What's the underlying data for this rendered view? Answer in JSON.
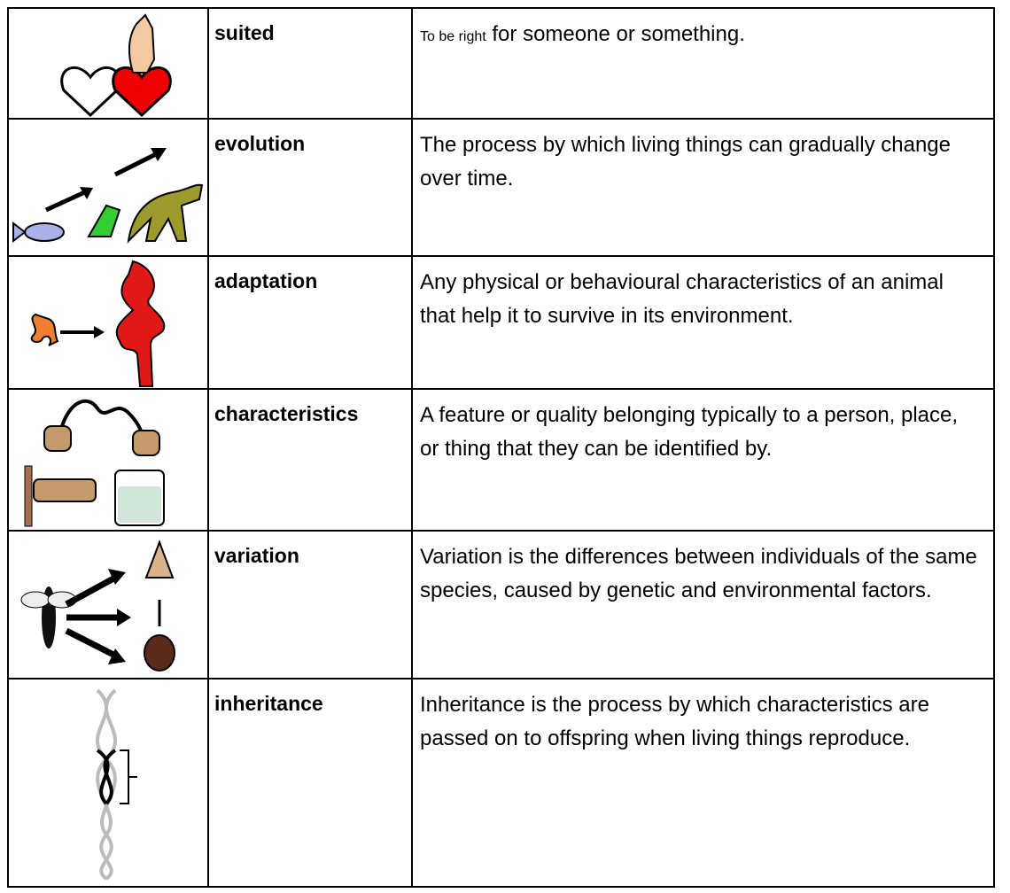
{
  "table": {
    "rows": [
      {
        "word": "suited",
        "definition": [
          "To be right",
          "for someone or something."
        ]
      },
      {
        "word": "evolution",
        "definition": [
          "The process by which living things can gradually change over  time."
        ]
      },
      {
        "word": "adaptation",
        "definition": [
          "Any physical or behavioural characteristics of an animal that  help it to survive in its environment."
        ]
      },
      {
        "word": "characteristics",
        "definition": [
          "A feature or quality belonging typically to a person, place, or  thing that they can be identified by."
        ]
      },
      {
        "word": "variation",
        "definition": [
          "Variation is the differences between individuals of the same  species, caused by genetic and environmental factors."
        ]
      },
      {
        "word": "inheritance",
        "definition": [
          "Inheritance is the process by which characteristics are passed on to offspring when living things reproduce."
        ]
      }
    ]
  }
}
